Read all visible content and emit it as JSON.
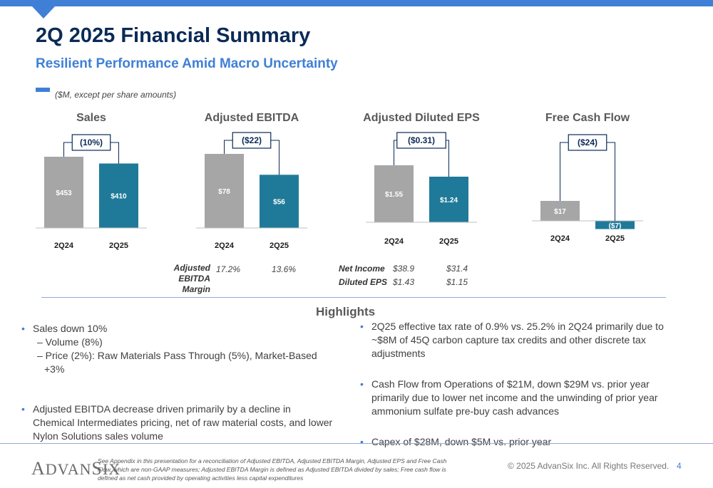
{
  "header": {
    "title": "2Q 2025 Financial Summary",
    "subtitle": "Resilient Performance Amid Macro Uncertainty",
    "units_note": "($M, except per share amounts)"
  },
  "colors": {
    "prior": "#a6a6a6",
    "current": "#1f7a99",
    "accent": "#3f80d6",
    "navy": "#0b2a57"
  },
  "chart_data": [
    {
      "type": "bar",
      "title": "Sales",
      "categories": [
        "2Q24",
        "2Q25"
      ],
      "values": [
        453,
        410
      ],
      "value_labels": [
        "$453",
        "$410"
      ],
      "delta_label": "(10%)"
    },
    {
      "type": "bar",
      "title": "Adjusted EBITDA",
      "categories": [
        "2Q24",
        "2Q25"
      ],
      "values": [
        78,
        56
      ],
      "value_labels": [
        "$78",
        "$56"
      ],
      "delta_label": "($22)"
    },
    {
      "type": "bar",
      "title": "Adjusted Diluted EPS",
      "categories": [
        "2Q24",
        "2Q25"
      ],
      "values": [
        1.55,
        1.24
      ],
      "value_labels": [
        "$1.55",
        "$1.24"
      ],
      "delta_label": "($0.31)"
    },
    {
      "type": "bar",
      "title": "Free Cash Flow",
      "categories": [
        "2Q24",
        "2Q25"
      ],
      "values": [
        17,
        -7
      ],
      "value_labels": [
        "$17",
        "($7)"
      ],
      "delta_label": "($24)"
    }
  ],
  "ebitda_margin": {
    "label": "Adjusted EBITDA Margin",
    "values": [
      "17.2%",
      "13.6%"
    ]
  },
  "eps_table": [
    {
      "label": "Net Income",
      "values": [
        "$38.9",
        "$31.4"
      ]
    },
    {
      "label": "Diluted EPS",
      "values": [
        "$1.43",
        "$1.15"
      ]
    }
  ],
  "highlights": {
    "title": "Highlights",
    "left": {
      "sales": "Sales down 10%",
      "sales_sub": [
        "– Volume (8%)",
        "– Price (2%): Raw Materials Pass Through (5%), Market-Based +3%"
      ],
      "ebitda": "Adjusted EBITDA decrease driven primarily by a decline in Chemical Intermediates pricing, net of raw material costs, and lower Nylon Solutions sales volume"
    },
    "right": [
      "2Q25 effective tax rate of 0.9% vs. 25.2% in 2Q24 primarily due to ~$8M of 45Q carbon capture tax credits and other discrete tax adjustments",
      "Cash Flow from Operations of $21M, down $29M vs. prior year primarily due to lower net income and the unwinding of prior year ammonium sulfate pre-buy cash advances",
      "Capex of $28M, down $5M vs. prior year"
    ]
  },
  "footer": {
    "logo": "AdvanSix",
    "note": "See Appendix in this presentation for a reconciliation of Adjusted EBITDA, Adjusted EBITDA Margin, Adjusted EPS and Free Cash Flow, which are non-GAAP measures; Adjusted EBITDA Margin is defined as Adjusted EBITDA divided by sales; Free cash flow is defined as net cash provided by operating activities less capital expenditures",
    "copyright": "© 2025 AdvanSix Inc. All Rights Reserved.",
    "page": "4"
  }
}
